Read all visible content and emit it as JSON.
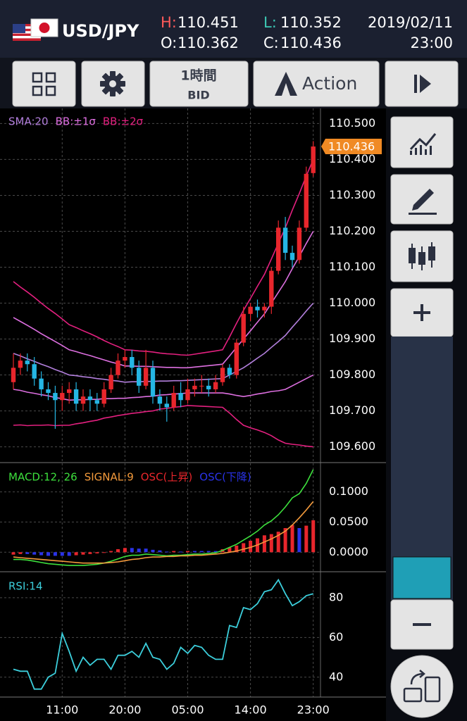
{
  "header": {
    "pair": "USD/JPY",
    "high_label": "H:",
    "high": "110.451",
    "low_label": "L:",
    "low": "110.352",
    "open_label": "O:",
    "open": "110.362",
    "close_label": "C:",
    "close": "110.436",
    "date": "2019/02/11",
    "time": "23:00"
  },
  "toolbar": {
    "timeframe": "1時間",
    "price_type": "BID",
    "action": "Action"
  },
  "chart_data": [
    {
      "type": "candlestick",
      "up_color": "#e8262c",
      "down_color": "#25b6e4",
      "open": [
        109.78,
        109.82,
        109.84,
        109.83,
        109.79,
        109.76,
        109.75,
        109.73,
        109.75,
        109.76,
        109.72,
        109.74,
        109.73,
        109.72,
        109.76,
        109.8,
        109.84,
        109.85,
        109.82,
        109.77,
        109.82,
        109.74,
        109.72,
        109.71,
        109.75,
        109.73,
        109.76,
        109.77,
        109.77,
        109.76,
        109.78,
        109.82,
        109.8,
        109.89,
        109.97,
        109.99,
        109.98,
        109.99,
        110.09,
        110.21,
        110.14,
        110.12,
        110.21,
        110.362
      ],
      "high": [
        109.86,
        109.86,
        109.86,
        109.85,
        109.81,
        109.78,
        109.77,
        109.77,
        109.78,
        109.78,
        109.76,
        109.76,
        109.75,
        109.78,
        109.82,
        109.86,
        109.87,
        109.87,
        109.84,
        109.87,
        109.84,
        109.76,
        109.74,
        109.77,
        109.78,
        109.79,
        109.79,
        109.8,
        109.79,
        109.8,
        109.83,
        109.83,
        109.9,
        109.99,
        110.0,
        110.01,
        110.0,
        110.1,
        110.23,
        110.24,
        110.16,
        110.23,
        110.38,
        110.451
      ],
      "low": [
        109.76,
        109.8,
        109.81,
        109.77,
        109.74,
        109.73,
        109.65,
        109.7,
        109.72,
        109.7,
        109.7,
        109.7,
        109.7,
        109.71,
        109.75,
        109.79,
        109.82,
        109.8,
        109.75,
        109.76,
        109.72,
        109.7,
        109.67,
        109.7,
        109.71,
        109.72,
        109.74,
        109.75,
        109.74,
        109.75,
        109.77,
        109.79,
        109.79,
        109.88,
        109.95,
        109.96,
        109.96,
        109.97,
        110.08,
        110.12,
        110.1,
        110.11,
        110.2,
        110.352
      ],
      "close": [
        109.82,
        109.84,
        109.83,
        109.79,
        109.76,
        109.75,
        109.73,
        109.75,
        109.76,
        109.72,
        109.74,
        109.73,
        109.72,
        109.76,
        109.8,
        109.84,
        109.85,
        109.82,
        109.77,
        109.82,
        109.74,
        109.72,
        109.71,
        109.75,
        109.73,
        109.76,
        109.77,
        109.77,
        109.76,
        109.78,
        109.82,
        109.8,
        109.89,
        109.97,
        109.99,
        109.98,
        109.99,
        110.09,
        110.21,
        110.14,
        110.12,
        110.21,
        110.36,
        110.436
      ],
      "series": [
        {
          "name": "SMA:20",
          "color": "#b27fdc",
          "values": [
            109.86,
            109.853,
            109.845,
            109.838,
            109.83,
            109.823,
            109.815,
            109.808,
            109.8,
            109.798,
            109.795,
            109.793,
            109.79,
            109.788,
            109.785,
            109.783,
            109.78,
            109.781,
            109.781,
            109.782,
            109.782,
            109.783,
            109.783,
            109.784,
            109.784,
            109.785,
            109.786,
            109.787,
            109.788,
            109.789,
            109.79,
            109.8,
            109.81,
            109.82,
            109.833,
            109.847,
            109.86,
            109.877,
            109.893,
            109.91,
            109.933,
            109.955,
            109.978,
            110.0
          ]
        },
        {
          "name": "BB:±1σ",
          "color": "#dd6fe0",
          "upper": [
            109.96,
            109.949,
            109.938,
            109.927,
            109.915,
            109.904,
            109.893,
            109.882,
            109.87,
            109.865,
            109.859,
            109.854,
            109.848,
            109.842,
            109.836,
            109.831,
            109.825,
            109.825,
            109.824,
            109.824,
            109.823,
            109.822,
            109.821,
            109.821,
            109.82,
            109.82,
            109.822,
            109.824,
            109.826,
            109.828,
            109.83,
            109.853,
            109.877,
            109.9,
            109.923,
            109.947,
            109.97,
            110.0,
            110.03,
            110.06,
            110.096,
            110.13,
            110.166,
            110.2
          ],
          "lower": [
            109.76,
            109.757,
            109.752,
            109.749,
            109.745,
            109.742,
            109.737,
            109.734,
            109.73,
            109.731,
            109.731,
            109.732,
            109.732,
            109.734,
            109.734,
            109.735,
            109.735,
            109.737,
            109.738,
            109.74,
            109.741,
            109.744,
            109.745,
            109.747,
            109.748,
            109.75,
            109.75,
            109.75,
            109.75,
            109.75,
            109.75,
            109.747,
            109.743,
            109.74,
            109.743,
            109.747,
            109.75,
            109.754,
            109.756,
            109.76,
            109.77,
            109.78,
            109.79,
            109.8
          ]
        },
        {
          "name": "BB:±2σ",
          "color": "#e3207f",
          "upper": [
            110.06,
            110.045,
            110.031,
            110.016,
            110.0,
            109.985,
            109.971,
            109.956,
            109.94,
            109.932,
            109.923,
            109.915,
            109.906,
            109.896,
            109.887,
            109.879,
            109.87,
            109.869,
            109.867,
            109.866,
            109.864,
            109.861,
            109.859,
            109.858,
            109.856,
            109.855,
            109.858,
            109.861,
            109.864,
            109.867,
            109.87,
            109.906,
            109.944,
            109.98,
            110.013,
            110.047,
            110.08,
            110.123,
            110.167,
            110.21,
            110.259,
            110.305,
            110.354,
            110.4
          ],
          "lower": [
            109.66,
            109.661,
            109.659,
            109.66,
            109.66,
            109.661,
            109.659,
            109.66,
            109.66,
            109.664,
            109.667,
            109.671,
            109.674,
            109.68,
            109.683,
            109.687,
            109.69,
            109.693,
            109.695,
            109.698,
            109.7,
            109.705,
            109.707,
            109.71,
            109.712,
            109.715,
            109.714,
            109.713,
            109.712,
            109.711,
            109.71,
            109.694,
            109.676,
            109.66,
            109.653,
            109.647,
            109.64,
            109.631,
            109.619,
            109.61,
            109.607,
            109.605,
            109.602,
            109.6
          ]
        }
      ],
      "last_price": 110.436,
      "last_price_color": "#f08a24",
      "ylim": [
        109.56,
        110.54
      ],
      "yticks": [
        {
          "value": 109.6,
          "label": "109.600"
        },
        {
          "value": 109.7,
          "label": "109.700"
        },
        {
          "value": 109.8,
          "label": "109.800"
        },
        {
          "value": 109.9,
          "label": "109.900"
        },
        {
          "value": 110.0,
          "label": "110.000"
        },
        {
          "value": 110.1,
          "label": "110.100"
        },
        {
          "value": 110.2,
          "label": "110.200"
        },
        {
          "value": 110.3,
          "label": "110.300"
        },
        {
          "value": 110.4,
          "label": "110.400"
        },
        {
          "value": 110.5,
          "label": "110.500"
        }
      ],
      "grid": true
    },
    {
      "type": "combo",
      "series": [
        {
          "name": "MACD:12, 26",
          "color": "#3de03d",
          "kind": "line",
          "values": [
            -0.012,
            -0.012,
            -0.013,
            -0.015,
            -0.017,
            -0.019,
            -0.02,
            -0.021,
            -0.022,
            -0.022,
            -0.022,
            -0.021,
            -0.02,
            -0.018,
            -0.015,
            -0.011,
            -0.007,
            -0.005,
            -0.005,
            -0.003,
            -0.004,
            -0.005,
            -0.006,
            -0.005,
            -0.005,
            -0.004,
            -0.003,
            -0.003,
            -0.002,
            -0.001,
            0.003,
            0.008,
            0.013,
            0.02,
            0.027,
            0.035,
            0.045,
            0.052,
            0.062,
            0.075,
            0.09,
            0.097,
            0.114,
            0.137
          ]
        },
        {
          "name": "SIGNAL:9",
          "color": "#f39a3c",
          "kind": "line",
          "values": [
            -0.008,
            -0.009,
            -0.01,
            -0.011,
            -0.012,
            -0.013,
            -0.014,
            -0.015,
            -0.016,
            -0.017,
            -0.018,
            -0.018,
            -0.018,
            -0.018,
            -0.017,
            -0.016,
            -0.014,
            -0.012,
            -0.011,
            -0.009,
            -0.008,
            -0.008,
            -0.007,
            -0.007,
            -0.006,
            -0.006,
            -0.005,
            -0.005,
            -0.004,
            -0.003,
            -0.002,
            0.0,
            0.002,
            0.005,
            0.008,
            0.012,
            0.017,
            0.022,
            0.028,
            0.035,
            0.045,
            0.057,
            0.07,
            0.084
          ]
        },
        {
          "name": "OSC(上昇)",
          "color": "#e8262c",
          "kind": "bar",
          "values": [
            -0.004,
            -0.003,
            null,
            null,
            null,
            null,
            null,
            null,
            null,
            -0.005,
            -0.004,
            -0.003,
            -0.002,
            0,
            0.002,
            0.005,
            0.007,
            null,
            null,
            null,
            null,
            null,
            null,
            0.002,
            null,
            0.002,
            null,
            null,
            null,
            null,
            0.005,
            0.008,
            0.011,
            0.015,
            0.019,
            0.023,
            0.028,
            0.03,
            0.034,
            0.04,
            0.045,
            null,
            0.044,
            0.053
          ]
        },
        {
          "name": "OSC(下降)",
          "color": "#2a33e8",
          "kind": "bar",
          "values": [
            null,
            null,
            -0.003,
            -0.004,
            -0.005,
            -0.006,
            -0.006,
            -0.006,
            -0.006,
            null,
            null,
            null,
            null,
            null,
            null,
            null,
            null,
            0.007,
            0.006,
            0.006,
            0.004,
            0.003,
            0.001,
            null,
            0.001,
            null,
            0.002,
            0.002,
            0.002,
            0.002,
            null,
            null,
            null,
            null,
            null,
            null,
            null,
            null,
            null,
            null,
            null,
            0.04,
            null,
            null
          ]
        }
      ],
      "ylim": [
        -0.03,
        0.145
      ],
      "yticks": [
        {
          "value": 0,
          "label": "0.0000"
        },
        {
          "value": 0.05,
          "label": "0.0500"
        },
        {
          "value": 0.1,
          "label": "0.1000"
        }
      ],
      "grid": true
    },
    {
      "type": "line",
      "categories": [
        null,
        null,
        null,
        null,
        null,
        null,
        null,
        "11:00",
        null,
        null,
        null,
        null,
        null,
        null,
        null,
        null,
        "20:00",
        null,
        null,
        null,
        null,
        null,
        null,
        null,
        null,
        "05:00",
        null,
        null,
        null,
        null,
        null,
        null,
        null,
        null,
        "14:00",
        null,
        null,
        null,
        null,
        null,
        null,
        null,
        null,
        "23:00"
      ],
      "series": [
        {
          "name": "RSI:14",
          "color": "#3ccfdc",
          "values": [
            44,
            43,
            43,
            34,
            34,
            40,
            42,
            62,
            53,
            43,
            50,
            46,
            49,
            49,
            44,
            51,
            51,
            53,
            50,
            57,
            50,
            49,
            44,
            47,
            55,
            52,
            56,
            55,
            51,
            49,
            49,
            66,
            65,
            75,
            74,
            77,
            83,
            84,
            89,
            82,
            76,
            78,
            81,
            82
          ]
        }
      ],
      "ylim": [
        30,
        92
      ],
      "yticks": [
        40,
        60,
        80
      ],
      "grid": true
    }
  ]
}
